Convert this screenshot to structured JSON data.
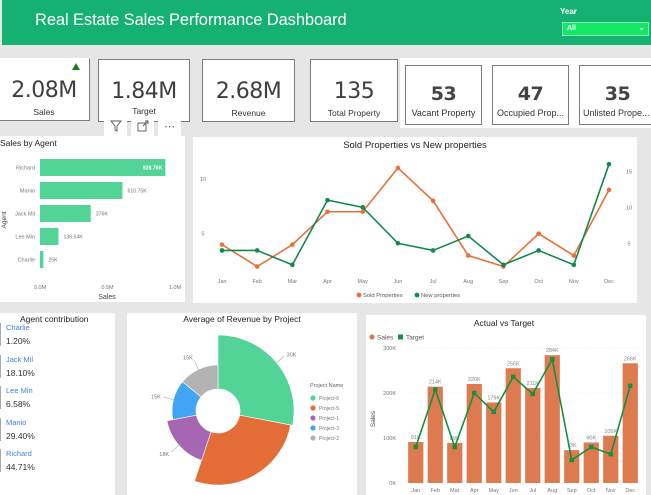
{
  "header": {
    "title": "Real Estate Sales Performance Dashboard",
    "year_filter": {
      "label": "Year",
      "selected": "All"
    }
  },
  "kpis": [
    {
      "value": "2.08M",
      "label": "Sales",
      "trend": "up"
    },
    {
      "value": "1.84M",
      "label": "Target"
    },
    {
      "value": "2.68M",
      "label": "Revenue"
    },
    {
      "value": "135",
      "label": "Total Property"
    },
    {
      "value": "53",
      "label": "Vacant Property"
    },
    {
      "value": "47",
      "label": "Occupied Prop..."
    },
    {
      "value": "35",
      "label": "Unlisted Prope..."
    }
  ],
  "visual_tools": {
    "filter_icon": "filter-icon",
    "focus_icon": "focus-mode-icon",
    "more_icon": "more-options-icon"
  },
  "colors": {
    "header": "#14b173",
    "agent_bar": "#52d497",
    "sold": "#e8703b",
    "new": "#118a4d",
    "sales_bar": "#dd7a4f",
    "target_line": "#14913f"
  },
  "chart_data": [
    {
      "id": "sales_by_agent",
      "type": "bar",
      "orientation": "horizontal",
      "title": "Sales by Agent",
      "xlabel": "Sales",
      "ylabel": "Agent",
      "categories": [
        "Richard",
        "Manio",
        "Jack Mil",
        "Lee Min",
        "Charlie"
      ],
      "values": [
        928760,
        610750,
        376000,
        136640,
        25000
      ],
      "data_labels": [
        "928.76K",
        "610.75K",
        "376K",
        "136.64K",
        "25K"
      ],
      "xlim": [
        0,
        1000000
      ],
      "xticks": [
        "0.0M",
        "0.5M",
        "1.0M"
      ]
    },
    {
      "id": "sold_vs_new",
      "type": "line",
      "title": "Sold Properties vs New properties",
      "x": [
        "Jan",
        "Feb",
        "Mar",
        "Apr",
        "May",
        "Jun",
        "Jul",
        "Aug",
        "Sep",
        "Oct",
        "Nov",
        "Dec"
      ],
      "series": [
        {
          "name": "Sold Properties",
          "axis": "left",
          "values": [
            4,
            2,
            4,
            7,
            7,
            11,
            8,
            3,
            2,
            5,
            3,
            9
          ]
        },
        {
          "name": "New properties",
          "axis": "right",
          "values": [
            4,
            4,
            2,
            11,
            10,
            5,
            4,
            6,
            2,
            4,
            2,
            16
          ]
        }
      ],
      "left_ticks": [
        "5",
        "10"
      ],
      "right_ticks": [
        "5",
        "10",
        "15"
      ],
      "left_ylim": [
        1.5,
        12
      ],
      "right_ylim": [
        1,
        17
      ],
      "legend": "bottom"
    },
    {
      "id": "avg_revenue_by_project",
      "type": "pie",
      "title": "Average of Revenue by Project",
      "legend_title": "Project Name",
      "categories": [
        "Project-6",
        "Project-5",
        "Project-1",
        "Project-3",
        "Project-2"
      ],
      "values": [
        30000,
        29000,
        18000,
        15000,
        15000
      ],
      "data_labels": [
        "30K",
        "",
        "18K",
        "15K",
        "15K"
      ],
      "colors": [
        "#52d497",
        "#e46c37",
        "#a566b3",
        "#42a4f5",
        "#b3b3b3"
      ],
      "legend": "right"
    },
    {
      "id": "actual_vs_target",
      "type": "bar",
      "title": "Actual vs Target",
      "ylabel": "Sales",
      "categories": [
        "Jan",
        "Feb",
        "Mar",
        "Apr",
        "May",
        "Jun",
        "Jul",
        "Aug",
        "Sep",
        "Oct",
        "Nov",
        "Dec"
      ],
      "series": [
        {
          "name": "Sales",
          "type": "bar",
          "values": [
            91000,
            214000,
            89000,
            220000,
            179000,
            255000,
            211000,
            284000,
            73000,
            90000,
            105000,
            266000
          ],
          "data_labels": [
            "91K",
            "214K",
            "89K",
            "220K",
            "179K",
            "255K",
            "211K",
            "284K",
            "73K",
            "90K",
            "105K",
            "266K"
          ]
        },
        {
          "name": "Target",
          "type": "line",
          "values": [
            80000,
            208000,
            80000,
            200000,
            158000,
            236000,
            198000,
            275000,
            51000,
            80000,
            64000,
            216000
          ]
        }
      ],
      "ylim": [
        0,
        300000
      ],
      "yticks": [
        "0K",
        "100K",
        "200K",
        "300K"
      ],
      "legend": "top-left"
    }
  ],
  "agent_contribution": {
    "title": "Agent contribution",
    "items": [
      {
        "name": "Charlie",
        "value": "1.20%"
      },
      {
        "name": "Jack Mil",
        "value": "18.10%"
      },
      {
        "name": "Lee Min",
        "value": "6.58%"
      },
      {
        "name": "Manio",
        "value": "29.40%"
      },
      {
        "name": "Richard",
        "value": "44.71%"
      }
    ]
  }
}
